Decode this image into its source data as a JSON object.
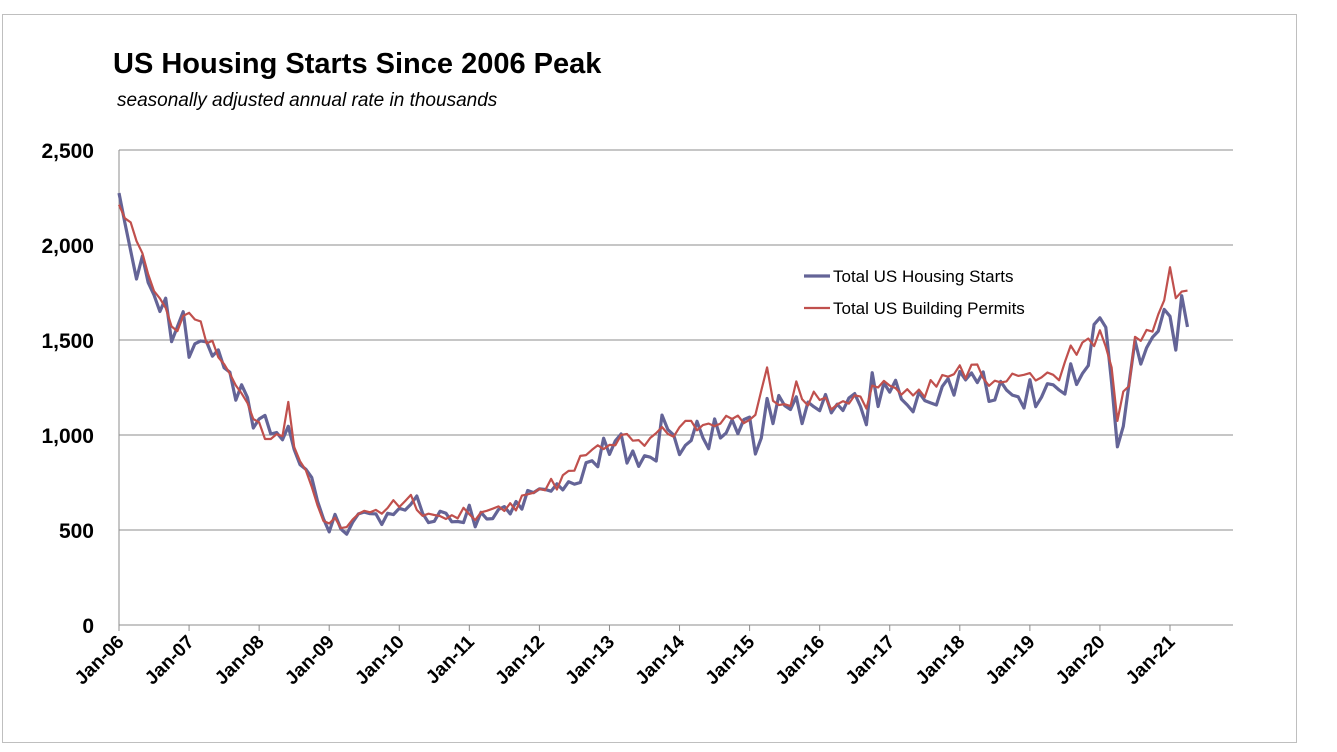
{
  "chart_data": {
    "type": "line",
    "title": "US Housing Starts Since 2006 Peak",
    "subtitle": "seasonally adjusted annual rate in thousands",
    "xlabel": "",
    "ylabel": "",
    "ylim": [
      0,
      2500
    ],
    "yticks": [
      "0",
      "500",
      "1,000",
      "1,500",
      "2,000",
      "2,500"
    ],
    "x_tick_labels": [
      "Jan-06",
      "Jan-07",
      "Jan-08",
      "Jan-09",
      "Jan-10",
      "Jan-11",
      "Jan-12",
      "Jan-13",
      "Jan-14",
      "Jan-15",
      "Jan-16",
      "Jan-17",
      "Jan-18",
      "Jan-19",
      "Jan-20",
      "Jan-21"
    ],
    "x_start": "Jan-06",
    "x_end": "Apr-21",
    "grid": "horizontal",
    "legend_position": "right",
    "series": [
      {
        "name": "Total US Housing Starts",
        "color": "#646497",
        "values": [
          2273,
          2119,
          1969,
          1821,
          1942,
          1802,
          1737,
          1650,
          1720,
          1491,
          1570,
          1649,
          1409,
          1480,
          1495,
          1490,
          1415,
          1448,
          1354,
          1330,
          1183,
          1264,
          1197,
          1037,
          1084,
          1103,
          1005,
          1013,
          975,
          1046,
          923,
          844,
          820,
          777,
          652,
          560,
          490,
          582,
          505,
          478,
          540,
          585,
          594,
          586,
          585,
          529,
          588,
          581,
          614,
          605,
          636,
          679,
          588,
          539,
          546,
          599,
          588,
          543,
          545,
          539,
          630,
          517,
          593,
          558,
          560,
          608,
          623,
          585,
          650,
          610,
          708,
          697,
          717,
          713,
          704,
          743,
          711,
          754,
          741,
          750,
          854,
          864,
          833,
          983,
          898,
          969,
          1005,
          852,
          916,
          835,
          891,
          883,
          863,
          1105,
          1028,
          1000,
          897,
          946,
          971,
          1072,
          986,
          928,
          1085,
          984,
          1011,
          1080,
          1007,
          1081,
          1094,
          900,
          984,
          1192,
          1060,
          1208,
          1155,
          1134,
          1201,
          1060,
          1173,
          1149,
          1128,
          1213,
          1117,
          1162,
          1129,
          1195,
          1218,
          1150,
          1054,
          1328,
          1150,
          1274,
          1226,
          1288,
          1189,
          1158,
          1122,
          1225,
          1181,
          1169,
          1158,
          1256,
          1297,
          1210,
          1334,
          1290,
          1327,
          1276,
          1332,
          1177,
          1184,
          1282,
          1237,
          1210,
          1201,
          1142,
          1291,
          1149,
          1199,
          1270,
          1264,
          1237,
          1215,
          1375,
          1266,
          1323,
          1365,
          1582,
          1617,
          1567,
          1276,
          938,
          1046,
          1273,
          1497,
          1373,
          1459,
          1514,
          1547,
          1661,
          1625,
          1447,
          1733,
          1569
        ]
      },
      {
        "name": "Total US Building Permits",
        "color": "#c0504d",
        "values": [
          2212,
          2141,
          2119,
          2021,
          1957,
          1845,
          1758,
          1719,
          1669,
          1571,
          1547,
          1627,
          1643,
          1608,
          1598,
          1482,
          1496,
          1409,
          1373,
          1322,
          1261,
          1219,
          1168,
          1084,
          1067,
          979,
          979,
          1004,
          994,
          1174,
          937,
          862,
          815,
          728,
          630,
          548,
          534,
          564,
          510,
          515,
          555,
          585,
          601,
          593,
          606,
          586,
          616,
          657,
          621,
          652,
          685,
          606,
          574,
          586,
          579,
          573,
          558,
          578,
          561,
          617,
          583,
          552,
          593,
          601,
          612,
          624,
          600,
          641,
          603,
          681,
          688,
          696,
          717,
          709,
          769,
          713,
          788,
          811,
          812,
          890,
          894,
          922,
          946,
          926,
          948,
          946,
          1000,
          1005,
          970,
          973,
          943,
          985,
          1010,
          1042,
          1005,
          991,
          1041,
          1074,
          1074,
          1025,
          1052,
          1060,
          1047,
          1060,
          1101,
          1084,
          1102,
          1062,
          1080,
          1106,
          1234,
          1356,
          1180,
          1158,
          1162,
          1152,
          1282,
          1188,
          1155,
          1228,
          1184,
          1197,
          1134,
          1161,
          1178,
          1165,
          1209,
          1202,
          1139,
          1260,
          1250,
          1285,
          1260,
          1247,
          1212,
          1241,
          1208,
          1239,
          1199,
          1289,
          1254,
          1316,
          1307,
          1320,
          1367,
          1297,
          1370,
          1371,
          1299,
          1259,
          1286,
          1277,
          1282,
          1323,
          1311,
          1317,
          1326,
          1287,
          1303,
          1329,
          1317,
          1288,
          1384,
          1471,
          1422,
          1487,
          1508,
          1468,
          1551,
          1464,
          1356,
          1074,
          1229,
          1258,
          1517,
          1495,
          1553,
          1544,
          1635,
          1709,
          1883,
          1720,
          1755,
          1760
        ]
      }
    ]
  }
}
